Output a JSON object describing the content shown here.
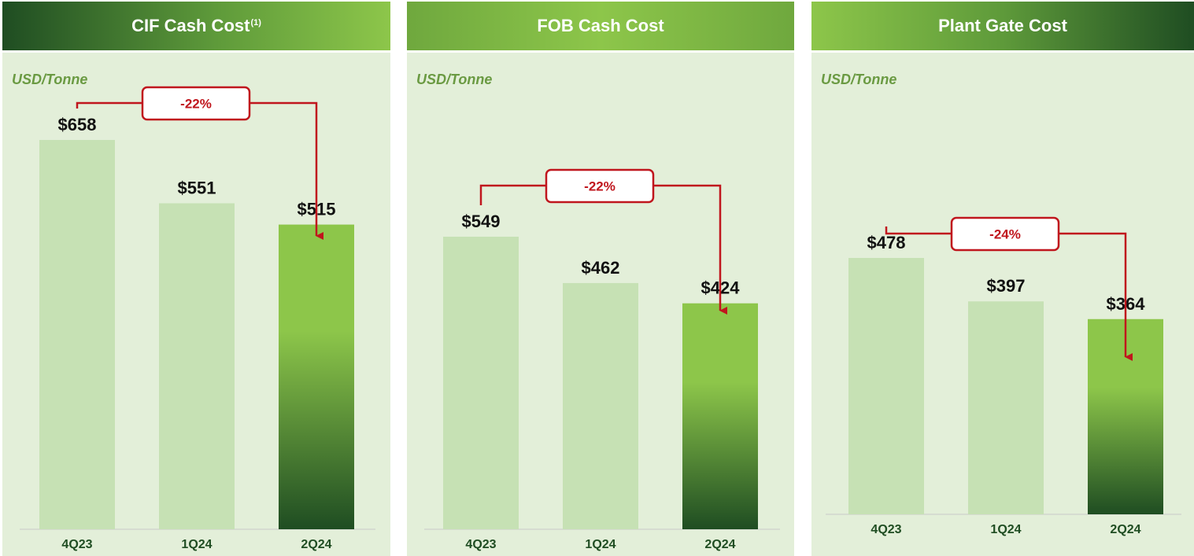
{
  "chart_data": [
    {
      "type": "bar",
      "title": "CIF Cash Cost",
      "title_note": "(1)",
      "unit": "USD/Tonne",
      "categories": [
        "4Q23",
        "1Q24",
        "2Q24"
      ],
      "values": [
        658,
        551,
        515
      ],
      "value_labels": [
        "$658",
        "$551",
        "$515"
      ],
      "change_label": "-22%",
      "highlight_index": 2
    },
    {
      "type": "bar",
      "title": "FOB Cash Cost",
      "title_note": "",
      "unit": "USD/Tonne",
      "categories": [
        "4Q23",
        "1Q24",
        "2Q24"
      ],
      "values": [
        549,
        462,
        424
      ],
      "value_labels": [
        "$549",
        "$462",
        "$424"
      ],
      "change_label": "-22%",
      "highlight_index": 2
    },
    {
      "type": "bar",
      "title": "Plant Gate Cost",
      "title_note": "",
      "unit": "USD/Tonne",
      "categories": [
        "4Q23",
        "1Q24",
        "2Q24"
      ],
      "values": [
        478,
        397,
        364
      ],
      "value_labels": [
        "$478",
        "$397",
        "$364"
      ],
      "change_label": "-24%",
      "highlight_index": 2
    }
  ],
  "colors": {
    "bar_light": "#c6e1b4",
    "bar_highlight_top": "#8dc64a",
    "bar_highlight_bottom": "#1f4d22",
    "change_red": "#c0161d",
    "panel_bg": "#e3efd9"
  }
}
